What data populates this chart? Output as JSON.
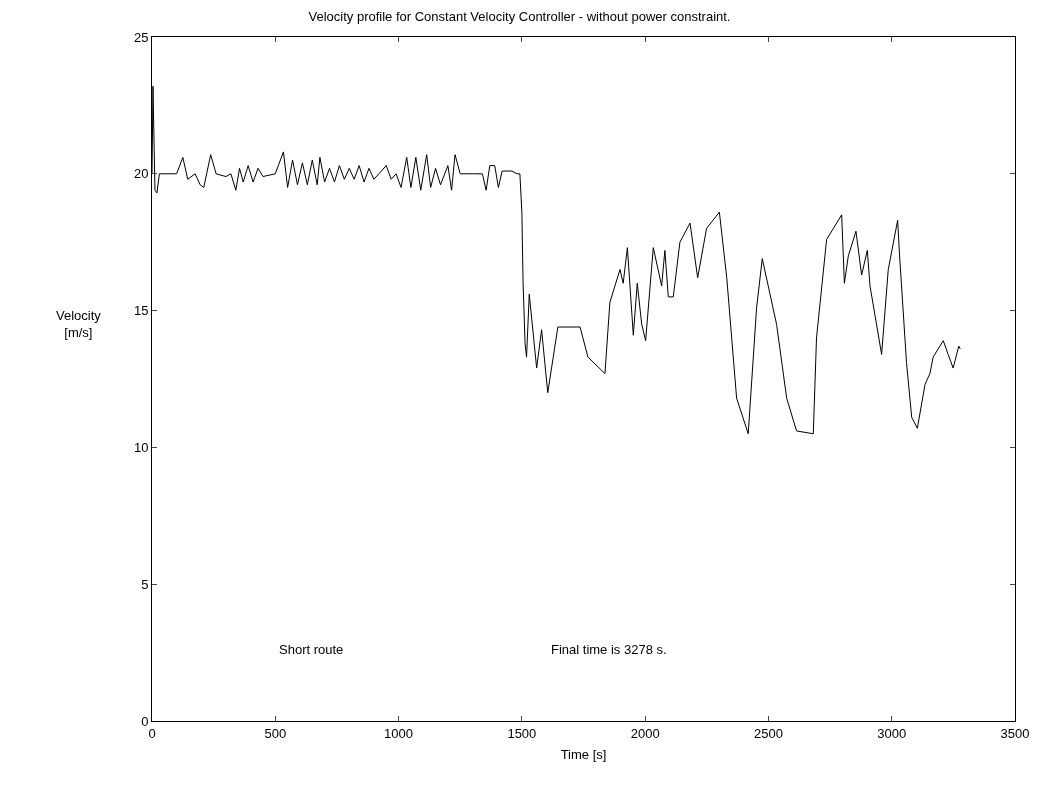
{
  "chart_data": {
    "type": "line",
    "title": "Velocity profile for Constant Velocity Controller - without power constraint.",
    "xlabel": "Time [s]",
    "ylabel": "Velocity\n[m/s]",
    "x": [
      0,
      4,
      12,
      20,
      30,
      60,
      100,
      125,
      145,
      175,
      195,
      210,
      238,
      260,
      300,
      320,
      340,
      355,
      370,
      390,
      410,
      430,
      450,
      500,
      533,
      550,
      570,
      590,
      610,
      630,
      650,
      670,
      681,
      700,
      720,
      740,
      760,
      780,
      800,
      820,
      840,
      860,
      880,
      900,
      920,
      950,
      970,
      990,
      1010,
      1033,
      1050,
      1070,
      1090,
      1114,
      1130,
      1150,
      1170,
      1200,
      1215,
      1229,
      1250,
      1300,
      1340,
      1355,
      1370,
      1390,
      1405,
      1420,
      1460,
      1480,
      1492,
      1500,
      1505,
      1513,
      1519,
      1530,
      1560,
      1580,
      1605,
      1646,
      1736,
      1768,
      1837,
      1857,
      1898,
      1911,
      1928,
      1952,
      1968,
      1986,
      2002,
      2033,
      2067,
      2080,
      2094,
      2114,
      2141,
      2182,
      2213,
      2249,
      2301,
      2331,
      2371,
      2418,
      2452,
      2475,
      2533,
      2574,
      2614,
      2682,
      2695,
      2736,
      2797,
      2808,
      2824,
      2855,
      2878,
      2901,
      2912,
      2959,
      2986,
      3024,
      3032,
      3060,
      3081,
      3104,
      3135,
      3155,
      3168,
      3209,
      3229,
      3249,
      3272,
      3278
    ],
    "series": [
      {
        "color": "#000000",
        "values": [
          20,
          23.2,
          19.4,
          19.3,
          20,
          20,
          20,
          20.6,
          19.8,
          20,
          19.6,
          19.5,
          20.7,
          20,
          19.9,
          20,
          19.4,
          20.2,
          19.7,
          20.3,
          19.7,
          20.2,
          19.9,
          20,
          20.8,
          19.5,
          20.5,
          19.6,
          20.4,
          19.6,
          20.5,
          19.6,
          20.6,
          19.7,
          20.2,
          19.7,
          20.3,
          19.8,
          20.2,
          19.8,
          20.3,
          19.7,
          20.2,
          19.8,
          20,
          20.3,
          19.8,
          20,
          19.5,
          20.6,
          19.5,
          20.6,
          19.4,
          20.7,
          19.5,
          20.2,
          19.6,
          20.3,
          19.4,
          20.7,
          20,
          20,
          20,
          19.4,
          20.3,
          20.3,
          19.5,
          20.1,
          20.1,
          20,
          20,
          18.6,
          16,
          13.8,
          13.3,
          15.6,
          12.9,
          14.3,
          12,
          14.4,
          14.4,
          13.3,
          12.7,
          15.3,
          16.5,
          16,
          17.3,
          14.1,
          16,
          14.5,
          13.9,
          17.3,
          15.9,
          17.2,
          15.5,
          15.5,
          17.5,
          18.2,
          16.2,
          18,
          18.6,
          16.2,
          11.8,
          10.5,
          15.1,
          16.9,
          14.5,
          11.8,
          10.6,
          10.5,
          14,
          17.6,
          18.5,
          16,
          17,
          17.9,
          16.3,
          17.2,
          15.9,
          13.4,
          16.5,
          18.3,
          17,
          13.1,
          11.1,
          10.7,
          12.3,
          12.7,
          13.3,
          13.9,
          13.4,
          12.9,
          13.7,
          13.6
        ]
      }
    ],
    "xlim": [
      0,
      3500
    ],
    "xticks": [
      0,
      500,
      1000,
      1500,
      2000,
      2500,
      3000,
      3500
    ],
    "ylim": [
      0,
      25
    ],
    "yticks": [
      0,
      5,
      10,
      15,
      20,
      25
    ],
    "grid": false,
    "marker": "none",
    "line_style": "solid",
    "annotations": [
      "Short route",
      "Final time is 3278 s."
    ]
  }
}
